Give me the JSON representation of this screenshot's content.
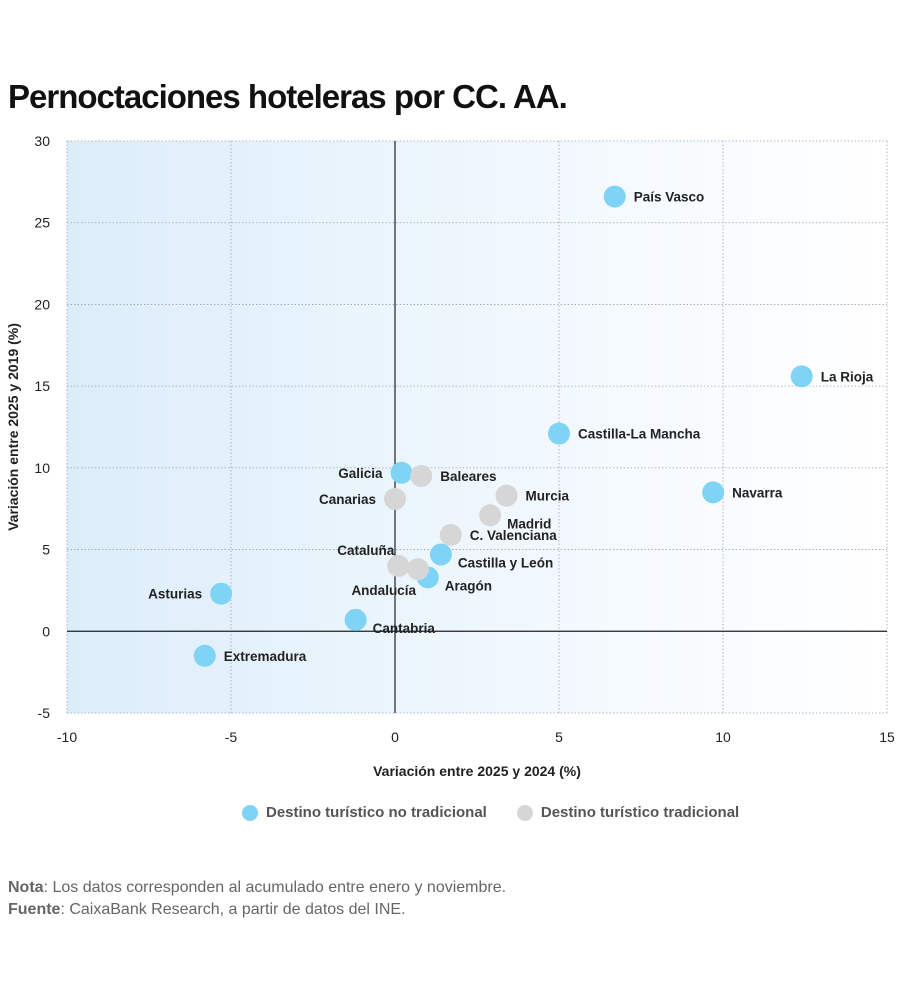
{
  "title": "Pernoctaciones hoteleras por CC. AA.",
  "chart_data": {
    "type": "scatter",
    "xlabel": "Variación entre 2025 y 2024 (%)",
    "ylabel": "Variación entre 2025 y 2019 (%)",
    "xlim": [
      -10,
      15
    ],
    "ylim": [
      -5,
      30
    ],
    "xticks": [
      -10,
      -5,
      0,
      5,
      10,
      15
    ],
    "yticks": [
      -5,
      0,
      5,
      10,
      15,
      20,
      25,
      30
    ],
    "grid": true,
    "legend_position": "bottom",
    "series": [
      {
        "name": "Destino turístico no tradicional",
        "color": "#7fd3f5",
        "points": [
          {
            "label": "País Vasco",
            "x": 6.7,
            "y": 26.6,
            "label_side": "right"
          },
          {
            "label": "La Rioja",
            "x": 12.4,
            "y": 15.6,
            "label_side": "right"
          },
          {
            "label": "Castilla-La Mancha",
            "x": 5.0,
            "y": 12.1,
            "label_side": "right"
          },
          {
            "label": "Navarra",
            "x": 9.7,
            "y": 8.5,
            "label_side": "right"
          },
          {
            "label": "Galicia",
            "x": 0.2,
            "y": 9.7,
            "label_side": "left"
          },
          {
            "label": "Castilla y León",
            "x": 1.4,
            "y": 4.7,
            "label_side": "right-below"
          },
          {
            "label": "Aragón",
            "x": 1.0,
            "y": 3.3,
            "label_side": "right-below"
          },
          {
            "label": "Asturias",
            "x": -5.3,
            "y": 2.3,
            "label_side": "left"
          },
          {
            "label": "Cantabria",
            "x": -1.2,
            "y": 0.7,
            "label_side": "right-below"
          },
          {
            "label": "Extremadura",
            "x": -5.8,
            "y": -1.5,
            "label_side": "right"
          }
        ]
      },
      {
        "name": "Destino turístico tradicional",
        "color": "#d6d6d6",
        "points": [
          {
            "label": "Baleares",
            "x": 0.8,
            "y": 9.5,
            "label_side": "right"
          },
          {
            "label": "Canarias",
            "x": 0.0,
            "y": 8.1,
            "label_side": "left"
          },
          {
            "label": "Murcia",
            "x": 3.4,
            "y": 8.3,
            "label_side": "right"
          },
          {
            "label": "Madrid",
            "x": 2.9,
            "y": 7.1,
            "label_side": "right-below"
          },
          {
            "label": "C. Valenciana",
            "x": 1.7,
            "y": 5.9,
            "label_side": "right"
          },
          {
            "label": "Cataluña",
            "x": 0.1,
            "y": 4.0,
            "label_side": "left-above"
          },
          {
            "label": "Andalucía",
            "x": 0.7,
            "y": 3.8,
            "label_side": "left-below"
          }
        ]
      }
    ]
  },
  "legend": [
    {
      "label": "Destino turístico no tradicional",
      "color": "#7fd3f5"
    },
    {
      "label": "Destino turístico tradicional",
      "color": "#d6d6d6"
    }
  ],
  "notes": {
    "nota_label": "Nota",
    "nota_text": ": Los datos corresponden al acumulado entre enero y noviembre.",
    "fuente_label": "Fuente",
    "fuente_text": ": CaixaBank Research, a partir de datos del INE."
  }
}
